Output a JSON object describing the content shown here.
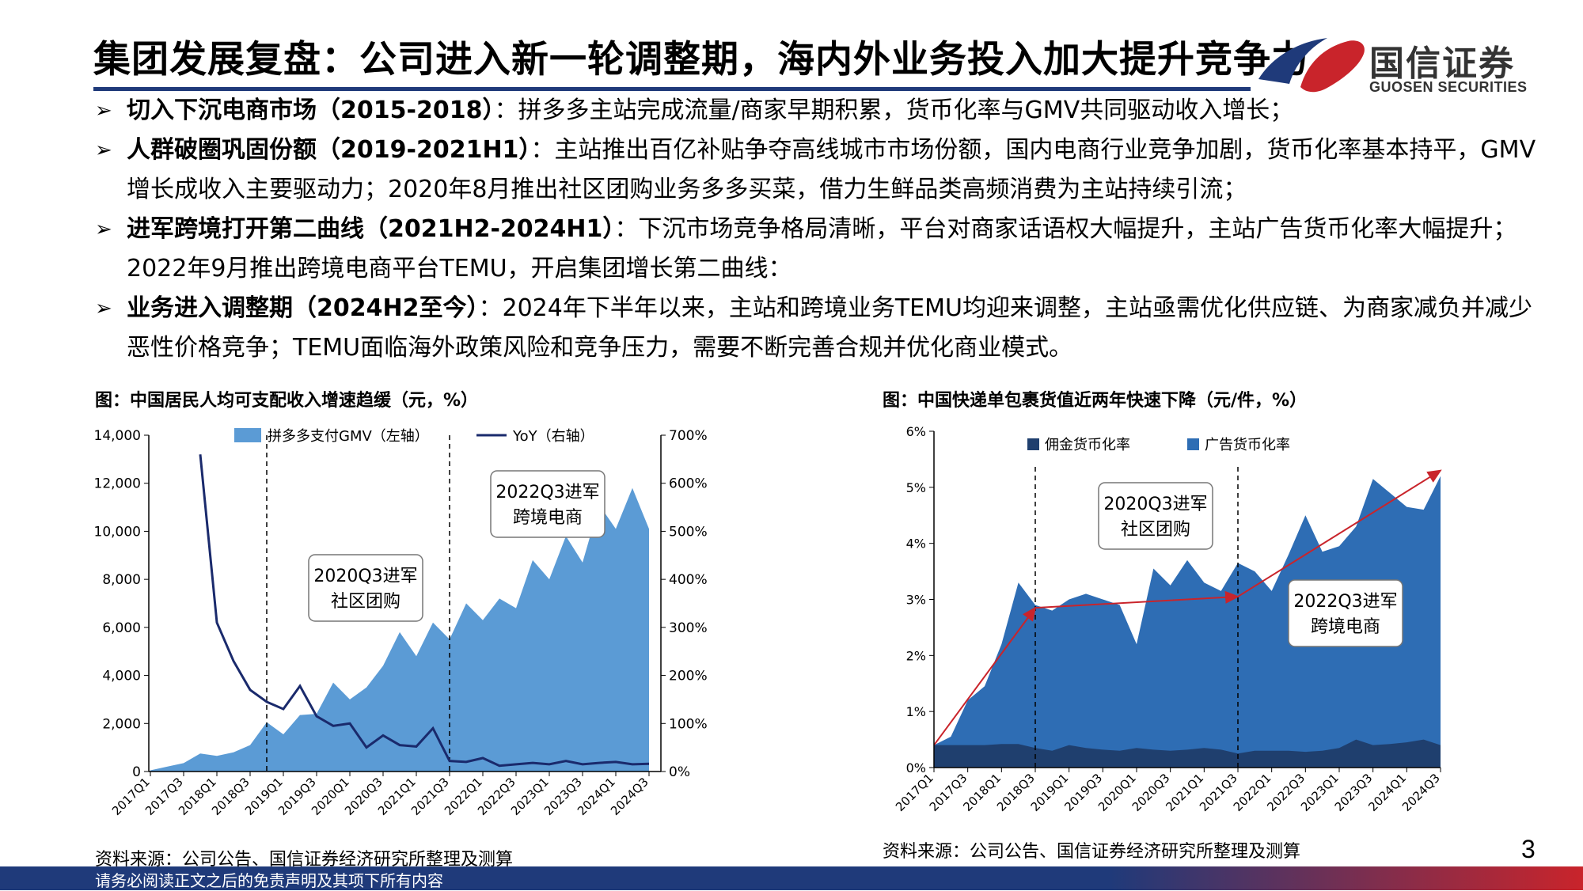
{
  "header": {
    "title": "集团发展复盘：公司进入新一轮调整期，海内外业务投入加大提升竞争力",
    "logo_cn": "国信证券",
    "logo_en": "GUOSEN SECURITIES"
  },
  "bullets": [
    {
      "bold": "切入下沉电商市场（2015-2018）",
      "text": "：拼多多主站完成流量/商家早期积累，货币化率与GMV共同驱动收入增长；"
    },
    {
      "bold": "人群破圈巩固份额（2019-2021H1）",
      "text": "：主站推出百亿补贴争夺高线城市市场份额，国内电商行业竞争加剧，货币化率基本持平，GMV增长成收入主要驱动力；2020年8月推出社区团购业务多多买菜，借力生鲜品类高频消费为主站持续引流；"
    },
    {
      "bold": "进军跨境打开第二曲线（2021H2-2024H1）",
      "text": "：下沉市场竞争格局清晰，平台对商家话语权大幅提升，主站广告货币化率大幅提升；2022年9月推出跨境电商平台TEMU，开启集团增长第二曲线："
    },
    {
      "bold": "业务进入调整期（2024H2至今）",
      "text": "：2024年下半年以来，主站和跨境业务TEMU均迎来调整，主站亟需优化供应链、为商家减负并减少恶性价格竞争；TEMU面临海外政策风险和竞争压力，需要不断完善合规并优化商业模式。"
    }
  ],
  "left_chart": {
    "title": "图：中国居民人均可支配收入增速趋缓（元，%）",
    "source": "资料来源：公司公告、国信证券经济研究所整理及测算",
    "legend_area": "拼多多支付GMV（左轴）",
    "legend_line": "YoY（右轴）",
    "annotation1_line1": "2020Q3进军",
    "annotation1_line2": "社区团购",
    "annotation2_line1": "2022Q3进军",
    "annotation2_line2": "跨境电商"
  },
  "right_chart": {
    "title": "图：中国快递单包裹货值近两年快速下降（元/件，%）",
    "source": "资料来源：公司公告、国信证券经济研究所整理及测算",
    "legend_a": "佣金货币化率",
    "legend_b": "广告货币化率",
    "annotation1_line1": "2020Q3进军",
    "annotation1_line2": "社区团购",
    "annotation2_line1": "2022Q3进军",
    "annotation2_line2": "跨境电商"
  },
  "page_number": "3",
  "footer_text": "请务必阅读正文之后的免责声明及其项下所有内容",
  "colors": {
    "navy": "#1f3a7a",
    "red": "#c9242b",
    "area_light": "#5b9bd5",
    "area_dark": "#2e6db4",
    "commission": "#1f3f6e"
  },
  "chart_data": [
    {
      "type": "area",
      "x": [
        "2017Q1",
        "2017Q2",
        "2017Q3",
        "2017Q4",
        "2018Q1",
        "2018Q2",
        "2018Q3",
        "2018Q4",
        "2019Q1",
        "2019Q2",
        "2019Q3",
        "2019Q4",
        "2020Q1",
        "2020Q2",
        "2020Q3",
        "2020Q4",
        "2021Q1",
        "2021Q2",
        "2021Q3",
        "2021Q4",
        "2022Q1",
        "2022Q2",
        "2022Q3",
        "2022Q4",
        "2023Q1",
        "2023Q2",
        "2023Q3",
        "2023Q4",
        "2024Q1",
        "2024Q2",
        "2024Q3"
      ],
      "x_tick_labels": [
        "2017Q1",
        "2017Q3",
        "2018Q1",
        "2018Q3",
        "2019Q1",
        "2019Q3",
        "2020Q1",
        "2020Q3",
        "2021Q1",
        "2021Q3",
        "2022Q1",
        "2022Q3",
        "2023Q1",
        "2023Q3",
        "2024Q1",
        "2024Q3"
      ],
      "series": [
        {
          "name": "拼多多支付GMV（左轴）",
          "axis": "left",
          "values": [
            50,
            200,
            350,
            750,
            650,
            800,
            1100,
            2050,
            1550,
            2350,
            2400,
            3700,
            3000,
            3500,
            4400,
            5800,
            4800,
            6200,
            5500,
            7000,
            6300,
            7200,
            6800,
            8800,
            8000,
            9800,
            8700,
            11100,
            10100,
            11800,
            10100
          ]
        },
        {
          "name": "YoY（右轴）",
          "axis": "right",
          "values": [
            null,
            null,
            null,
            660,
            310,
            230,
            170,
            145,
            130,
            178,
            115,
            95,
            100,
            50,
            75,
            55,
            52,
            90,
            22,
            20,
            28,
            12,
            15,
            18,
            15,
            22,
            15,
            18,
            20,
            15,
            16
          ]
        }
      ],
      "ylim_left": [
        0,
        14000
      ],
      "yticks_left": [
        "0",
        "2,000",
        "4,000",
        "6,000",
        "8,000",
        "10,000",
        "12,000",
        "14,000"
      ],
      "ylim_right": [
        0,
        700
      ],
      "yticks_right": [
        "0%",
        "100%",
        "200%",
        "300%",
        "400%",
        "500%",
        "600%",
        "700%"
      ],
      "markers": [
        "2018Q4",
        "2021Q3"
      ]
    },
    {
      "type": "area",
      "x": [
        "2017Q1",
        "2017Q2",
        "2017Q3",
        "2017Q4",
        "2018Q1",
        "2018Q2",
        "2018Q3",
        "2018Q4",
        "2019Q1",
        "2019Q2",
        "2019Q3",
        "2019Q4",
        "2020Q1",
        "2020Q2",
        "2020Q3",
        "2020Q4",
        "2021Q1",
        "2021Q2",
        "2021Q3",
        "2021Q4",
        "2022Q1",
        "2022Q2",
        "2022Q3",
        "2022Q4",
        "2023Q1",
        "2023Q2",
        "2023Q3",
        "2023Q4",
        "2024Q1",
        "2024Q2",
        "2024Q3"
      ],
      "x_tick_labels": [
        "2017Q1",
        "2017Q3",
        "2018Q1",
        "2018Q3",
        "2019Q1",
        "2019Q3",
        "2020Q1",
        "2020Q3",
        "2021Q1",
        "2021Q3",
        "2022Q1",
        "2022Q3",
        "2023Q1",
        "2023Q3",
        "2024Q1",
        "2024Q3"
      ],
      "series": [
        {
          "name": "佣金货币化率",
          "values": [
            0.4,
            0.4,
            0.4,
            0.4,
            0.42,
            0.42,
            0.35,
            0.3,
            0.4,
            0.35,
            0.32,
            0.3,
            0.35,
            0.32,
            0.3,
            0.32,
            0.35,
            0.32,
            0.25,
            0.3,
            0.3,
            0.3,
            0.28,
            0.3,
            0.35,
            0.5,
            0.4,
            0.42,
            0.45,
            0.5,
            0.4
          ]
        },
        {
          "name": "广告货币化率",
          "values": [
            0.4,
            0.55,
            1.2,
            1.45,
            2.2,
            3.3,
            2.9,
            2.8,
            3.0,
            3.1,
            3.0,
            2.9,
            2.2,
            3.55,
            3.25,
            3.7,
            3.3,
            3.15,
            3.65,
            3.5,
            3.15,
            3.8,
            4.5,
            3.85,
            3.95,
            4.3,
            5.15,
            4.9,
            4.65,
            4.6,
            5.2
          ]
        }
      ],
      "ylim": [
        0,
        6
      ],
      "yticks": [
        "0%",
        "1%",
        "2%",
        "3%",
        "4%",
        "5%",
        "6%"
      ],
      "markers": [
        "2018Q3",
        "2021Q3"
      ],
      "trend_points": [
        [
          "2017Q1",
          0.4
        ],
        [
          "2018Q3",
          2.85
        ],
        [
          "2021Q3",
          3.05
        ],
        [
          "2024Q3",
          5.3
        ]
      ]
    }
  ]
}
